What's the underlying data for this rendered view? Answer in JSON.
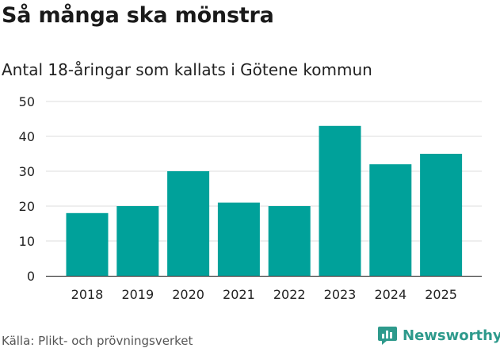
{
  "title": "Så många ska mönstra",
  "subtitle": "Antal 18-åringar som kallats i Götene kommun",
  "source": "Källa: Plikt- och prövningsverket",
  "brand": "Newsworthy",
  "colors": {
    "bar": "#00a19a",
    "grid": "#dddddd",
    "brand": "#2e9a8c"
  },
  "chart_data": {
    "type": "bar",
    "title": "Så många ska mönstra",
    "subtitle": "Antal 18-åringar som kallats i Götene kommun",
    "xlabel": "",
    "ylabel": "",
    "categories": [
      "2018",
      "2019",
      "2020",
      "2021",
      "2022",
      "2023",
      "2024",
      "2025"
    ],
    "values": [
      18,
      20,
      30,
      21,
      20,
      43,
      32,
      35
    ],
    "ylim": [
      0,
      50
    ],
    "yticks": [
      0,
      10,
      20,
      30,
      40,
      50
    ],
    "grid": true,
    "legend": "none"
  }
}
